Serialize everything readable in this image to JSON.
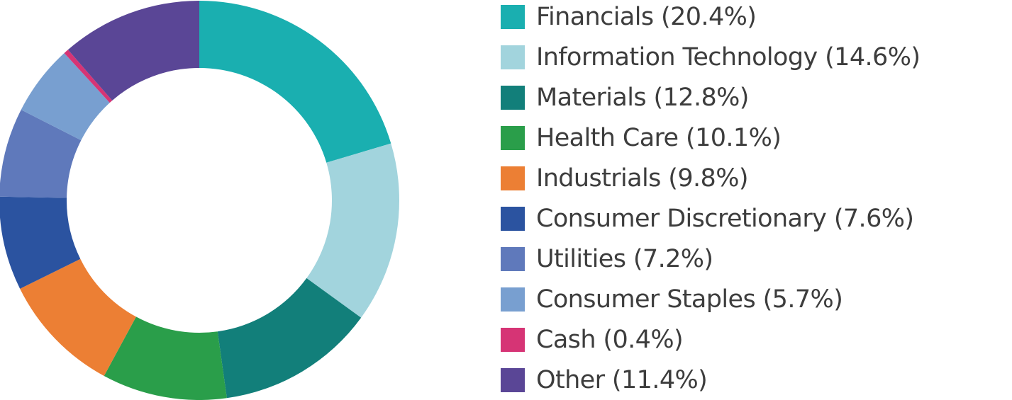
{
  "chart_data": {
    "type": "pie",
    "variant": "donut",
    "legend_position": "right",
    "slices": [
      {
        "label": "Financials (20.4%)",
        "value": 20.4,
        "color": "#1aafb0"
      },
      {
        "label": "Information Technology (14.6%)",
        "value": 14.6,
        "color": "#a2d4dd"
      },
      {
        "label": "Materials (12.8%)",
        "value": 12.8,
        "color": "#127f7a"
      },
      {
        "label": "Health Care (10.1%)",
        "value": 10.1,
        "color": "#2a9e4a"
      },
      {
        "label": "Industrials (9.8%)",
        "value": 9.8,
        "color": "#ec7f34"
      },
      {
        "label": "Consumer Discretionary (7.6%)",
        "value": 7.6,
        "color": "#2b53a0"
      },
      {
        "label": "Utilities (7.2%)",
        "value": 7.2,
        "color": "#5f79bb"
      },
      {
        "label": "Consumer Staples (5.7%)",
        "value": 5.7,
        "color": "#789fd0"
      },
      {
        "label": "Cash (0.4%)",
        "value": 0.4,
        "color": "#d63475"
      },
      {
        "label": "Other (11.4%)",
        "value": 11.4,
        "color": "#5a4696"
      }
    ]
  }
}
